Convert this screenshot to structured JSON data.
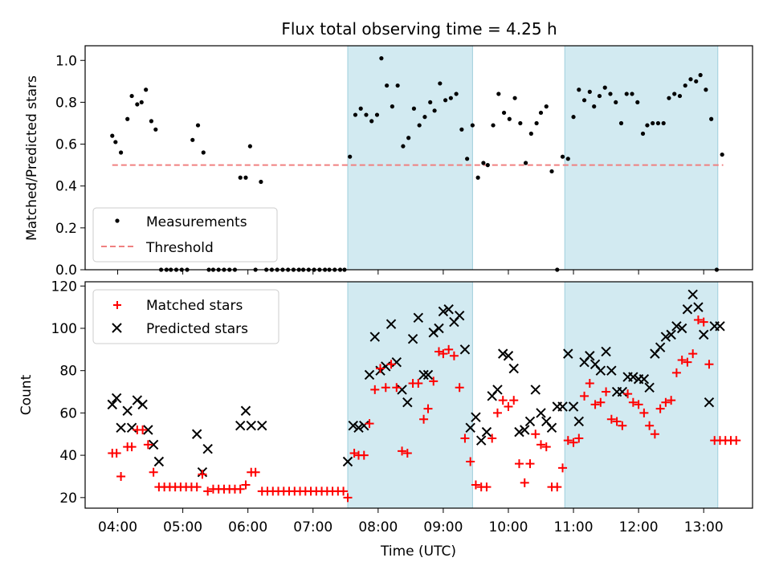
{
  "title": "Flux total observing time = 4.25 h",
  "colors": {
    "shade": "#add8e6",
    "matched": "#ff0000",
    "predicted": "#000000",
    "threshold": "#f08080",
    "measure": "#000000"
  },
  "chart_data": [
    {
      "type": "scatter",
      "ylabel": "Matched/Predicted stars",
      "xlabel": "",
      "xlim": [
        "03:30",
        "13:45"
      ],
      "ylim": [
        0,
        1.07
      ],
      "yticks": [
        "0.0",
        "0.2",
        "0.4",
        "0.6",
        "0.8",
        "1.0"
      ],
      "legend": {
        "position": "lower-left",
        "entries": [
          "Measurements",
          "Threshold"
        ]
      },
      "shaded_intervals": [
        [
          "07:32",
          "09:27"
        ],
        [
          "10:52",
          "13:13"
        ]
      ],
      "threshold": {
        "value": 0.5,
        "x_start": "03:55",
        "x_end": "13:18"
      },
      "series": [
        {
          "name": "Measurements",
          "x": [
            "03:55",
            "03:58",
            "04:03",
            "04:09",
            "04:13",
            "04:18",
            "04:22",
            "04:26",
            "04:31",
            "04:35",
            "04:40",
            "04:45",
            "04:49",
            "04:54",
            "04:59",
            "05:04",
            "05:09",
            "05:14",
            "05:19",
            "05:24",
            "05:28",
            "05:33",
            "05:38",
            "05:43",
            "05:48",
            "05:53",
            "05:58",
            "06:02",
            "06:07",
            "06:12",
            "06:17",
            "06:22",
            "06:27",
            "06:32",
            "06:37",
            "06:42",
            "06:47",
            "06:51",
            "06:56",
            "07:01",
            "07:06",
            "07:11",
            "07:15",
            "07:20",
            "07:25",
            "07:29",
            "07:34",
            "07:39",
            "07:44",
            "07:49",
            "07:54",
            "07:59",
            "08:03",
            "08:08",
            "08:13",
            "08:18",
            "08:23",
            "08:28",
            "08:33",
            "08:38",
            "08:43",
            "08:48",
            "08:52",
            "08:57",
            "09:02",
            "09:07",
            "09:12",
            "09:17",
            "09:22",
            "09:27",
            "09:32",
            "09:37",
            "09:41",
            "09:46",
            "09:51",
            "09:56",
            "10:01",
            "10:06",
            "10:11",
            "10:16",
            "10:21",
            "10:26",
            "10:30",
            "10:35",
            "10:40",
            "10:45",
            "10:50",
            "10:55",
            "11:00",
            "11:05",
            "11:10",
            "11:15",
            "11:19",
            "11:24",
            "11:29",
            "11:34",
            "11:39",
            "11:44",
            "11:49",
            "11:54",
            "11:59",
            "12:04",
            "12:08",
            "12:13",
            "12:18",
            "12:23",
            "12:28",
            "12:33",
            "12:38",
            "12:43",
            "12:48",
            "12:53",
            "12:57",
            "13:02",
            "13:07",
            "13:12",
            "13:17"
          ],
          "y": [
            0.64,
            0.61,
            0.56,
            0.72,
            0.83,
            0.79,
            0.8,
            0.86,
            0.71,
            0.67,
            0,
            0,
            0,
            0,
            0,
            0,
            0.62,
            0.69,
            0.56,
            0,
            0,
            0,
            0,
            0,
            0,
            0.44,
            0.44,
            0.59,
            0,
            0.42,
            0,
            0,
            0,
            0,
            0,
            0,
            0,
            0,
            0,
            0,
            0,
            0,
            0,
            0,
            0,
            0,
            0.54,
            0.74,
            0.77,
            0.74,
            0.71,
            0.74,
            1.01,
            0.88,
            0.78,
            0.88,
            0.59,
            0.63,
            0.77,
            0.69,
            0.73,
            0.8,
            0.76,
            0.89,
            0.81,
            0.82,
            0.84,
            0.67,
            0.53,
            0.69,
            0.44,
            0.51,
            0.5,
            0.69,
            0.84,
            0.75,
            0.72,
            0.82,
            0.7,
            0.51,
            0.65,
            0.7,
            0.75,
            0.78,
            0.47,
            0,
            0.54,
            0.53,
            0.73,
            0.86,
            0.81,
            0.85,
            0.78,
            0.83,
            0.87,
            0.84,
            0.8,
            0.7,
            0.84,
            0.84,
            0.8,
            0.65,
            0.69,
            0.7,
            0.7,
            0.7,
            0.82,
            0.84,
            0.83,
            0.88,
            0.91,
            0.9,
            0.93,
            0.86,
            0.72,
            0,
            0.55
          ]
        }
      ]
    },
    {
      "type": "scatter",
      "ylabel": "Count",
      "xlabel": "Time (UTC)",
      "xlim": [
        "03:30",
        "13:45"
      ],
      "ylim": [
        15,
        122
      ],
      "yticks": [
        "20",
        "40",
        "60",
        "80",
        "100",
        "120"
      ],
      "xticks": [
        "04:00",
        "05:00",
        "06:00",
        "07:00",
        "08:00",
        "09:00",
        "10:00",
        "11:00",
        "12:00",
        "13:00"
      ],
      "legend": {
        "position": "top-left",
        "entries": [
          "Matched stars",
          "Predicted stars"
        ]
      },
      "shaded_intervals": [
        [
          "07:32",
          "09:27"
        ],
        [
          "10:52",
          "13:13"
        ]
      ],
      "series": [
        {
          "name": "Matched stars",
          "x": [
            "03:55",
            "03:59",
            "04:03",
            "04:09",
            "04:13",
            "04:18",
            "04:23",
            "04:28",
            "04:33",
            "04:38",
            "04:43",
            "04:48",
            "04:53",
            "04:58",
            "05:03",
            "05:08",
            "05:13",
            "05:18",
            "05:23",
            "05:28",
            "05:33",
            "05:38",
            "05:43",
            "05:48",
            "05:53",
            "05:58",
            "06:03",
            "06:07",
            "06:13",
            "06:18",
            "06:23",
            "06:28",
            "06:33",
            "06:38",
            "06:43",
            "06:48",
            "06:53",
            "06:58",
            "07:03",
            "07:08",
            "07:13",
            "07:18",
            "07:23",
            "07:28",
            "07:32",
            "07:38",
            "07:42",
            "07:47",
            "07:52",
            "07:57",
            "08:02",
            "08:07",
            "08:12",
            "08:17",
            "08:22",
            "08:27",
            "08:32",
            "08:37",
            "08:42",
            "08:46",
            "08:51",
            "08:56",
            "09:00",
            "09:05",
            "09:10",
            "09:15",
            "09:20",
            "09:25",
            "09:30",
            "09:35",
            "09:40",
            "09:45",
            "09:50",
            "09:55",
            "10:00",
            "10:05",
            "10:10",
            "10:15",
            "10:20",
            "10:25",
            "10:30",
            "10:35",
            "10:40",
            "10:45",
            "10:50",
            "10:55",
            "11:00",
            "11:05",
            "11:10",
            "11:15",
            "11:20",
            "11:25",
            "11:30",
            "11:35",
            "11:40",
            "11:45",
            "11:50",
            "11:55",
            "12:00",
            "12:05",
            "12:10",
            "12:15",
            "12:20",
            "12:25",
            "12:30",
            "12:35",
            "12:40",
            "12:45",
            "12:50",
            "12:55",
            "13:00",
            "13:05",
            "13:10",
            "13:15",
            "13:20",
            "13:25",
            "13:30"
          ],
          "y": [
            41,
            41,
            30,
            44,
            44,
            52,
            52,
            45,
            32,
            25,
            25,
            25,
            25,
            25,
            25,
            25,
            25,
            31,
            23,
            24,
            24,
            24,
            24,
            24,
            24,
            26,
            32,
            32,
            23,
            23,
            23,
            23,
            23,
            23,
            23,
            23,
            23,
            23,
            23,
            23,
            23,
            23,
            23,
            23,
            20,
            41,
            40,
            40,
            55,
            71,
            81,
            72,
            83,
            72,
            42,
            41,
            74,
            74,
            57,
            62,
            75,
            89,
            88,
            90,
            87,
            72,
            48,
            37,
            26,
            25,
            25,
            48,
            60,
            66,
            63,
            66,
            36,
            27,
            36,
            50,
            45,
            44,
            25,
            25,
            34,
            47,
            46,
            48,
            68,
            74,
            64,
            65,
            70,
            57,
            56,
            54,
            69,
            65,
            64,
            60,
            54,
            50,
            62,
            65,
            66,
            79,
            85,
            84,
            88,
            104,
            103,
            83,
            47,
            47,
            47,
            47,
            47
          ],
          "y_note": ""
        },
        {
          "name": "Predicted stars",
          "x": [
            "03:55",
            "03:59",
            "04:03",
            "04:09",
            "04:13",
            "04:18",
            "04:23",
            "04:28",
            "04:33",
            "04:38",
            "05:13",
            "05:18",
            "05:23",
            "05:53",
            "05:58",
            "06:03",
            "06:13",
            "07:32",
            "07:37",
            "07:42",
            "07:47",
            "07:52",
            "07:57",
            "08:02",
            "08:07",
            "08:12",
            "08:17",
            "08:22",
            "08:27",
            "08:32",
            "08:37",
            "08:42",
            "08:46",
            "08:51",
            "08:56",
            "09:00",
            "09:05",
            "09:10",
            "09:15",
            "09:20",
            "09:25",
            "09:30",
            "09:35",
            "09:40",
            "09:45",
            "09:50",
            "09:55",
            "10:00",
            "10:05",
            "10:10",
            "10:15",
            "10:20",
            "10:25",
            "10:30",
            "10:35",
            "10:40",
            "10:45",
            "10:50",
            "10:55",
            "11:00",
            "11:05",
            "11:10",
            "11:15",
            "11:20",
            "11:25",
            "11:30",
            "11:35",
            "11:40",
            "11:45",
            "11:50",
            "11:55",
            "12:00",
            "12:05",
            "12:10",
            "12:15",
            "12:20",
            "12:25",
            "12:30",
            "12:35",
            "12:40",
            "12:45",
            "12:50",
            "12:55",
            "13:00",
            "13:05",
            "13:10",
            "13:15"
          ],
          "y": [
            64,
            67,
            53,
            61,
            53,
            66,
            64,
            52,
            45,
            37,
            50,
            32,
            43,
            54,
            61,
            54,
            54,
            37,
            54,
            53,
            54,
            78,
            96,
            80,
            82,
            102,
            84,
            71,
            65,
            95,
            105,
            78,
            78,
            98,
            100,
            108,
            109,
            103,
            106,
            90,
            53,
            58,
            47,
            51,
            68,
            71,
            88,
            87,
            81,
            51,
            52,
            56,
            71,
            60,
            56,
            53,
            63,
            63,
            88,
            63,
            56,
            84,
            87,
            83,
            80,
            89,
            80,
            70,
            70,
            77,
            77,
            76,
            76,
            72,
            88,
            91,
            96,
            97,
            101,
            100,
            109,
            116,
            110,
            97,
            65,
            101,
            101
          ]
        }
      ]
    }
  ]
}
